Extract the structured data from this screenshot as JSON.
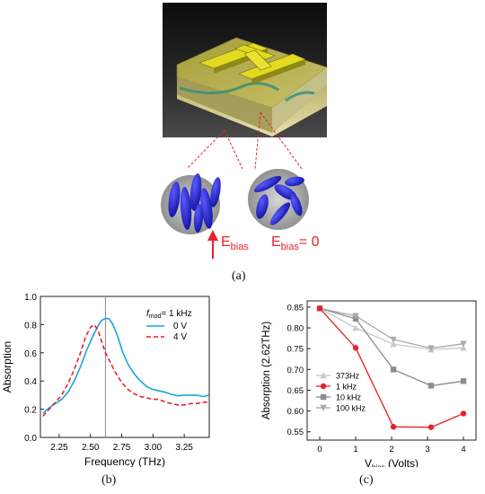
{
  "figure": {
    "caption_a": "(a)",
    "caption_b": "(b)",
    "caption_c": "(c)",
    "ebias_left_main": "E",
    "ebias_left_sub": "bias",
    "ebias_right_main": "E",
    "ebias_right_sub": "bias",
    "ebias_right_value": "= 0"
  },
  "colors": {
    "red": "#e8202a",
    "blue": "#1aa3dc",
    "device_yellow": "#c8c23a",
    "lc_blue": "#1c1cd0"
  },
  "chart_data": [
    {
      "type": "line",
      "title": "",
      "xlabel": "Frequency (THz)",
      "ylabel": "Absorption",
      "xlim": [
        2.1,
        3.45
      ],
      "ylim": [
        0.0,
        1.0
      ],
      "xticks": [
        "2.25",
        "2.50",
        "2.75",
        "3.00",
        "3.25"
      ],
      "yticks": [
        "0.0",
        "0.2",
        "0.4",
        "0.6",
        "0.8",
        "1.0"
      ],
      "legend_header_main": "f",
      "legend_header_sub": "mod",
      "legend_header_rest": "= 1 kHz",
      "legend_position": "top-right",
      "vline_x": 2.62,
      "series": [
        {
          "name": "0 V",
          "color": "#1aa3dc",
          "dash": "solid",
          "x": [
            2.12,
            2.17,
            2.22,
            2.27,
            2.32,
            2.37,
            2.42,
            2.47,
            2.52,
            2.56,
            2.59,
            2.62,
            2.65,
            2.68,
            2.72,
            2.76,
            2.8,
            2.85,
            2.9,
            2.95,
            3.0,
            3.05,
            3.1,
            3.15,
            3.2,
            3.25,
            3.3,
            3.35,
            3.4,
            3.45
          ],
          "y": [
            0.17,
            0.21,
            0.24,
            0.27,
            0.32,
            0.4,
            0.5,
            0.62,
            0.72,
            0.79,
            0.83,
            0.845,
            0.84,
            0.8,
            0.71,
            0.6,
            0.52,
            0.45,
            0.4,
            0.36,
            0.34,
            0.33,
            0.32,
            0.305,
            0.295,
            0.3,
            0.3,
            0.3,
            0.29,
            0.3
          ]
        },
        {
          "name": "4 V",
          "color": "#e8202a",
          "dash": "dashed",
          "x": [
            2.12,
            2.17,
            2.22,
            2.27,
            2.32,
            2.37,
            2.42,
            2.46,
            2.5,
            2.53,
            2.56,
            2.59,
            2.62,
            2.66,
            2.7,
            2.75,
            2.8,
            2.85,
            2.9,
            2.95,
            3.0,
            3.05,
            3.1,
            3.15,
            3.2,
            3.25,
            3.3,
            3.35,
            3.4,
            3.45
          ],
          "y": [
            0.15,
            0.2,
            0.25,
            0.3,
            0.38,
            0.48,
            0.6,
            0.71,
            0.78,
            0.8,
            0.76,
            0.68,
            0.6,
            0.53,
            0.46,
            0.39,
            0.34,
            0.31,
            0.29,
            0.28,
            0.27,
            0.27,
            0.25,
            0.24,
            0.23,
            0.23,
            0.24,
            0.24,
            0.25,
            0.25
          ]
        }
      ]
    },
    {
      "type": "line",
      "title": "",
      "xlabel_main": "V",
      "xlabel_sub": "bias",
      "xlabel_rest": " (Volts)",
      "ylabel": "Absorption (2.62THz)",
      "xlim": [
        -0.35,
        4.35
      ],
      "ylim": [
        0.53,
        0.865
      ],
      "xticks": [
        "0",
        "1",
        "2",
        "3",
        "4"
      ],
      "yticks": [
        "0.55",
        "0.60",
        "0.65",
        "0.70",
        "0.75",
        "0.80",
        "0.85"
      ],
      "legend_position": "center-left",
      "series": [
        {
          "name": "373Hz",
          "color": "#c8c8c8",
          "marker": "triangle-up",
          "x": [
            0,
            1,
            2.05,
            3.1,
            4
          ],
          "y": [
            0.847,
            0.8,
            0.761,
            0.748,
            0.752
          ]
        },
        {
          "name": "1 kHz",
          "color": "#e8202a",
          "marker": "circle",
          "x": [
            0,
            1,
            2.05,
            3.1,
            4
          ],
          "y": [
            0.847,
            0.752,
            0.562,
            0.561,
            0.594
          ]
        },
        {
          "name": "10 kHz",
          "color": "#8c8c8c",
          "marker": "square",
          "x": [
            0,
            1,
            2.05,
            3.1,
            4
          ],
          "y": [
            0.847,
            0.822,
            0.7,
            0.661,
            0.672
          ]
        },
        {
          "name": "100 kHz",
          "color": "#a8a8a8",
          "marker": "triangle-down",
          "x": [
            0,
            1,
            2.05,
            3.1,
            4
          ],
          "y": [
            0.847,
            0.829,
            0.772,
            0.751,
            0.762
          ]
        }
      ]
    }
  ]
}
